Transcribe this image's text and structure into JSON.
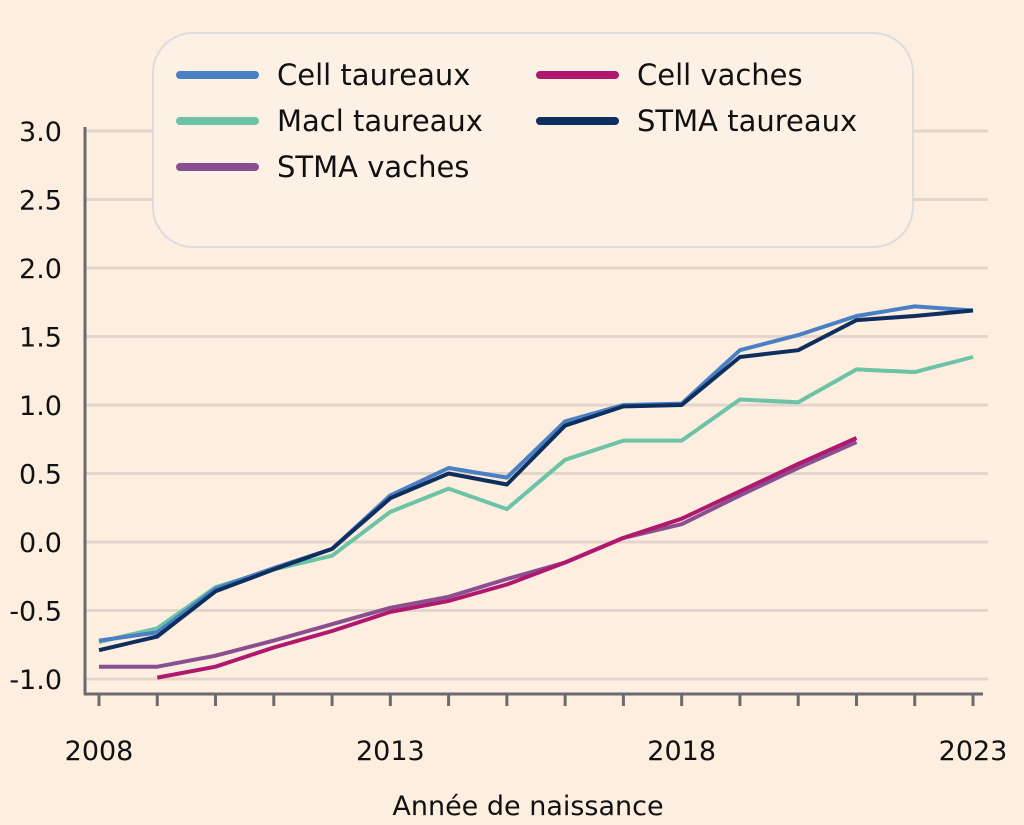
{
  "chart_data": {
    "type": "line",
    "title": "",
    "xlabel": "Année de naissance",
    "ylabel": "",
    "xlim": [
      2008,
      2023
    ],
    "ylim": [
      -1.0,
      3.0
    ],
    "x_tick_labels": [
      "2008",
      "2013",
      "2018",
      "2023"
    ],
    "y_tick_labels": [
      "3.0",
      "2.5",
      "2.0",
      "1.5",
      "1.0",
      "0.5",
      "0.0",
      "-0.5",
      "-1.0"
    ],
    "y_ticks": [
      3.0,
      2.5,
      2.0,
      1.5,
      1.0,
      0.5,
      0.0,
      -0.5,
      -1.0
    ],
    "grid": "horizontal",
    "legend_position": "top",
    "background": "#fdeee0",
    "series": [
      {
        "name": "Cell taureaux",
        "color": "#4a7fc4",
        "x": [
          2008,
          2009,
          2010,
          2011,
          2012,
          2013,
          2014,
          2015,
          2016,
          2017,
          2018,
          2019,
          2020,
          2021,
          2022,
          2023
        ],
        "values": [
          -0.72,
          -0.66,
          -0.34,
          -0.19,
          -0.05,
          0.34,
          0.54,
          0.47,
          0.88,
          1.0,
          1.01,
          1.4,
          1.51,
          1.65,
          1.72,
          1.69
        ]
      },
      {
        "name": "Cell vaches",
        "color": "#b0186e",
        "x": [
          2009,
          2010,
          2011,
          2012,
          2013,
          2014,
          2015,
          2016,
          2017,
          2018,
          2019,
          2020,
          2021
        ],
        "values": [
          -0.99,
          -0.91,
          -0.77,
          -0.65,
          -0.51,
          -0.43,
          -0.31,
          -0.15,
          0.03,
          0.17,
          0.37,
          0.57,
          0.76
        ]
      },
      {
        "name": "Macl taureaux",
        "color": "#6cc3a6",
        "x": [
          2008,
          2009,
          2010,
          2011,
          2012,
          2013,
          2014,
          2015,
          2016,
          2017,
          2018,
          2019,
          2020,
          2021,
          2022,
          2023
        ],
        "values": [
          -0.73,
          -0.63,
          -0.33,
          -0.2,
          -0.1,
          0.22,
          0.39,
          0.24,
          0.6,
          0.74,
          0.74,
          1.04,
          1.02,
          1.26,
          1.24,
          1.35
        ]
      },
      {
        "name": "STMA taureaux",
        "color": "#0e2f5e",
        "x": [
          2008,
          2009,
          2010,
          2011,
          2012,
          2013,
          2014,
          2015,
          2016,
          2017,
          2018,
          2019,
          2020,
          2021,
          2022,
          2023
        ],
        "values": [
          -0.79,
          -0.69,
          -0.36,
          -0.2,
          -0.05,
          0.32,
          0.5,
          0.42,
          0.85,
          0.99,
          1.0,
          1.35,
          1.4,
          1.62,
          1.65,
          1.69
        ]
      },
      {
        "name": "STMA vaches",
        "color": "#8a4f90",
        "x": [
          2008,
          2009,
          2010,
          2011,
          2012,
          2013,
          2014,
          2015,
          2016,
          2017,
          2018,
          2019,
          2020,
          2021
        ],
        "values": [
          -0.91,
          -0.91,
          -0.83,
          -0.72,
          -0.6,
          -0.48,
          -0.4,
          -0.27,
          -0.15,
          0.03,
          0.13,
          0.34,
          0.54,
          0.73
        ]
      }
    ]
  }
}
